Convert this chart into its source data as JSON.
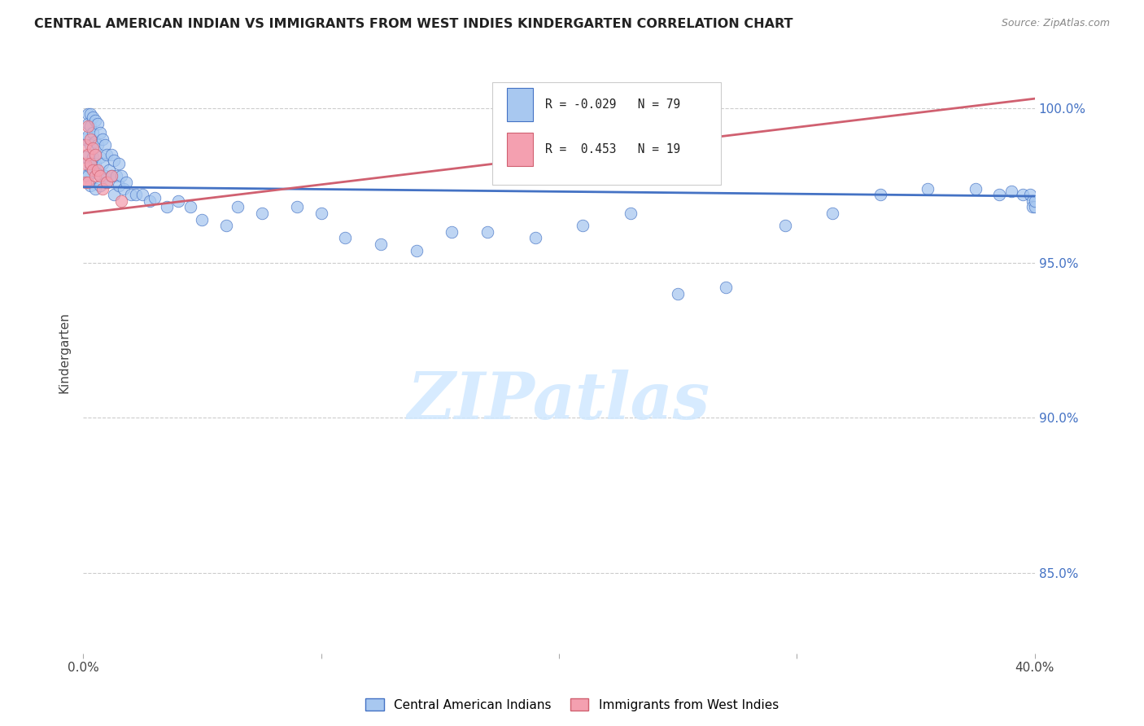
{
  "title": "CENTRAL AMERICAN INDIAN VS IMMIGRANTS FROM WEST INDIES KINDERGARTEN CORRELATION CHART",
  "source": "Source: ZipAtlas.com",
  "ylabel": "Kindergarten",
  "ytick_labels": [
    "100.0%",
    "95.0%",
    "90.0%",
    "85.0%"
  ],
  "ytick_values": [
    1.0,
    0.95,
    0.9,
    0.85
  ],
  "xlim": [
    0.0,
    0.4
  ],
  "ylim": [
    0.824,
    1.018
  ],
  "legend_r1": "R = -0.029",
  "legend_n1": "N = 79",
  "legend_r2": "R =  0.453",
  "legend_n2": "N = 19",
  "legend_label1": "Central American Indians",
  "legend_label2": "Immigrants from West Indies",
  "color_blue": "#A8C8F0",
  "color_pink": "#F4A0B0",
  "line_color_blue": "#4472C4",
  "line_color_pink": "#D06070",
  "watermark_text": "ZIPatlas",
  "blue_line_y0": 0.9745,
  "blue_line_y1": 0.9715,
  "pink_line_y0": 0.966,
  "pink_line_y1": 1.003,
  "blue_x": [
    0.001,
    0.001,
    0.001,
    0.002,
    0.002,
    0.002,
    0.002,
    0.003,
    0.003,
    0.003,
    0.003,
    0.003,
    0.004,
    0.004,
    0.004,
    0.005,
    0.005,
    0.005,
    0.005,
    0.006,
    0.006,
    0.006,
    0.007,
    0.007,
    0.007,
    0.008,
    0.008,
    0.009,
    0.009,
    0.01,
    0.01,
    0.011,
    0.012,
    0.012,
    0.013,
    0.013,
    0.014,
    0.015,
    0.015,
    0.016,
    0.017,
    0.018,
    0.02,
    0.022,
    0.025,
    0.028,
    0.03,
    0.035,
    0.04,
    0.045,
    0.05,
    0.06,
    0.065,
    0.075,
    0.09,
    0.1,
    0.11,
    0.125,
    0.14,
    0.155,
    0.17,
    0.19,
    0.21,
    0.23,
    0.25,
    0.27,
    0.295,
    0.315,
    0.335,
    0.355,
    0.375,
    0.385,
    0.39,
    0.395,
    0.398,
    0.399,
    0.399,
    0.4,
    0.4
  ],
  "blue_y": [
    0.99,
    0.984,
    0.978,
    0.998,
    0.995,
    0.991,
    0.978,
    0.998,
    0.994,
    0.988,
    0.981,
    0.975,
    0.997,
    0.992,
    0.984,
    0.996,
    0.989,
    0.982,
    0.974,
    0.995,
    0.988,
    0.979,
    0.992,
    0.984,
    0.975,
    0.99,
    0.982,
    0.988,
    0.978,
    0.985,
    0.976,
    0.98,
    0.985,
    0.978,
    0.983,
    0.972,
    0.978,
    0.982,
    0.975,
    0.978,
    0.974,
    0.976,
    0.972,
    0.972,
    0.972,
    0.97,
    0.971,
    0.968,
    0.97,
    0.968,
    0.964,
    0.962,
    0.968,
    0.966,
    0.968,
    0.966,
    0.958,
    0.956,
    0.954,
    0.96,
    0.96,
    0.958,
    0.962,
    0.966,
    0.94,
    0.942,
    0.962,
    0.966,
    0.972,
    0.974,
    0.974,
    0.972,
    0.973,
    0.972,
    0.972,
    0.97,
    0.968,
    0.968,
    0.97
  ],
  "pink_x": [
    0.001,
    0.001,
    0.001,
    0.002,
    0.002,
    0.002,
    0.003,
    0.003,
    0.004,
    0.004,
    0.005,
    0.005,
    0.006,
    0.007,
    0.008,
    0.01,
    0.012,
    0.016,
    0.2
  ],
  "pink_y": [
    0.988,
    0.982,
    0.976,
    0.994,
    0.985,
    0.976,
    0.99,
    0.982,
    0.987,
    0.98,
    0.985,
    0.978,
    0.98,
    0.978,
    0.974,
    0.976,
    0.978,
    0.97,
    1.002
  ]
}
